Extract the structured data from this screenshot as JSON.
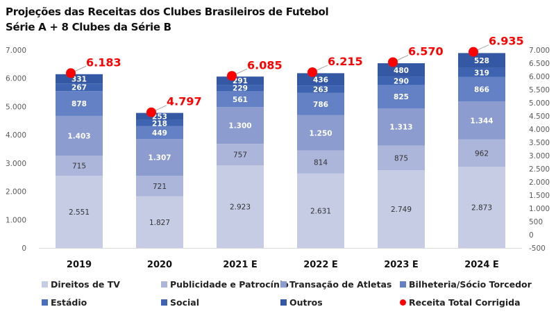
{
  "chart_data": {
    "type": "bar",
    "stacked": true,
    "title": "Projeções das Receitas dos Clubes Brasileiros de Futebol",
    "subtitle": "Série A + 8 Clubes da Série B",
    "categories": [
      "2019",
      "2020",
      "2021 E",
      "2022 E",
      "2023 E",
      "2024 E"
    ],
    "series": [
      {
        "name": "Direitos de TV",
        "color": "#c5cce4",
        "label_color": "#333333",
        "values": [
          2551,
          1827,
          2923,
          2631,
          2749,
          2873
        ],
        "labels": [
          "2.551",
          "1.827",
          "2.923",
          "2.631",
          "2.749",
          "2.873"
        ]
      },
      {
        "name": "Publicidade e Patrocínio",
        "color": "#acb6da",
        "label_color": "#333333",
        "values": [
          715,
          721,
          757,
          814,
          875,
          962
        ],
        "labels": [
          "715",
          "721",
          "757",
          "814",
          "875",
          "962"
        ]
      },
      {
        "name": "Transação de Atletas",
        "color": "#8c9ccf",
        "label_color": "#ffffff",
        "values": [
          1403,
          1307,
          1300,
          1250,
          1313,
          1344
        ],
        "labels": [
          "1.403",
          "1.307",
          "1.300",
          "1.250",
          "1.313",
          "1.344"
        ]
      },
      {
        "name": "Bilheteria/Sócio Torcedor",
        "color": "#6481c6",
        "label_color": "#ffffff",
        "values": [
          878,
          449,
          561,
          786,
          825,
          866
        ],
        "labels": [
          "878",
          "449",
          "561",
          "786",
          "825",
          "866"
        ]
      },
      {
        "name": "Estádio",
        "color": "#4a6fbd",
        "label_color": "#ffffff",
        "values": [
          0,
          0,
          0,
          0,
          0,
          0
        ],
        "labels": [
          "",
          "",
          "",
          "",
          "",
          ""
        ]
      },
      {
        "name": "Social",
        "color": "#3e63b0",
        "label_color": "#ffffff",
        "values": [
          267,
          218,
          229,
          263,
          290,
          319
        ],
        "labels": [
          "267",
          "218",
          "229",
          "263",
          "290",
          "319"
        ]
      },
      {
        "name": "Outros",
        "color": "#3558a4",
        "label_color": "#ffffff",
        "values": [
          331,
          253,
          291,
          436,
          480,
          528
        ],
        "labels": [
          "331",
          "253",
          "291",
          "436",
          "480",
          "528"
        ]
      }
    ],
    "total_series": {
      "name": "Receita Total Corrigida",
      "color": "#ff0000",
      "values": [
        6183,
        4797,
        6085,
        6215,
        6570,
        6935
      ],
      "labels": [
        "6.183",
        "4.797",
        "6.085",
        "6.215",
        "6.570",
        "6.935"
      ]
    },
    "y_left": {
      "ylim": [
        0,
        7000
      ],
      "ticks": [
        0,
        1000,
        2000,
        3000,
        4000,
        5000,
        6000,
        7000
      ],
      "tick_labels": [
        "0",
        "1.000",
        "2.000",
        "3.000",
        "4.000",
        "5.000",
        "6.000",
        "7.000"
      ]
    },
    "y_right": {
      "ylim": [
        -500,
        7000
      ],
      "ticks": [
        -500,
        0,
        500,
        1000,
        1500,
        2000,
        2500,
        3000,
        3500,
        4000,
        4500,
        5000,
        5500,
        6000,
        6500,
        7000
      ],
      "tick_labels": [
        "-500",
        "0",
        "500",
        "1.000",
        "1.500",
        "2.000",
        "2.500",
        "3.000",
        "3.500",
        "4.000",
        "4.500",
        "5.000",
        "5.500",
        "6.000",
        "6.500",
        "7.000"
      ]
    },
    "xlabel": "",
    "ylabel": "",
    "grid": false,
    "legend_position": "bottom"
  },
  "legend": {
    "items": [
      {
        "label": "Direitos de TV",
        "color": "#c5cce4",
        "shape": "square"
      },
      {
        "label": "Publicidade e Patrocínio",
        "color": "#acb6da",
        "shape": "square"
      },
      {
        "label": "Transação de Atletas",
        "color": "#8c9ccf",
        "shape": "square"
      },
      {
        "label": "Bilheteria/Sócio Torcedor",
        "color": "#6481c6",
        "shape": "square"
      },
      {
        "label": "Estádio",
        "color": "#4a6fbd",
        "shape": "square"
      },
      {
        "label": "Social",
        "color": "#3e63b0",
        "shape": "square"
      },
      {
        "label": "Outros",
        "color": "#3558a4",
        "shape": "square"
      },
      {
        "label": "Receita Total Corrigida",
        "color": "#ff0000",
        "shape": "circle"
      }
    ]
  }
}
